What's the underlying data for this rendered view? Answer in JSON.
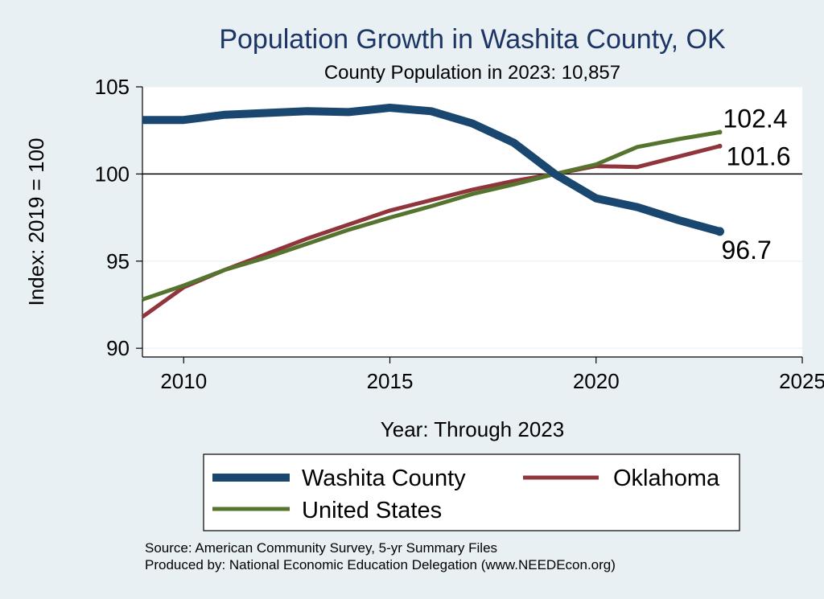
{
  "chart_data": {
    "type": "line",
    "title": "Population Growth in Washita County, OK",
    "subtitle": "County Population in 2023: 10,857",
    "xlabel": "Year: Through 2023",
    "ylabel": "Index: 2019 = 100",
    "xlim": [
      2009,
      2025
    ],
    "ylim": [
      89.5,
      105
    ],
    "x_ticks": [
      2010,
      2015,
      2020,
      2025
    ],
    "y_ticks": [
      90,
      95,
      100,
      105
    ],
    "reference_line": 100,
    "x": [
      2009,
      2010,
      2011,
      2012,
      2013,
      2014,
      2015,
      2016,
      2017,
      2018,
      2019,
      2020,
      2021,
      2022,
      2023
    ],
    "series": [
      {
        "name": "Washita  County",
        "color": "#1a476f",
        "values": [
          103.1,
          103.1,
          103.4,
          103.5,
          103.6,
          103.55,
          103.8,
          103.6,
          102.9,
          101.8,
          100.0,
          98.6,
          98.1,
          97.35,
          96.7
        ],
        "end_label": "96.7"
      },
      {
        "name": "Oklahoma",
        "color": "#90353b",
        "values": [
          91.8,
          93.5,
          94.5,
          95.4,
          96.3,
          97.1,
          97.9,
          98.5,
          99.1,
          99.6,
          100.0,
          100.45,
          100.4,
          101.0,
          101.6
        ],
        "end_label": "101.6"
      },
      {
        "name": "United States",
        "color": "#55752f",
        "values": [
          92.8,
          93.6,
          94.5,
          95.2,
          96.0,
          96.8,
          97.5,
          98.15,
          98.85,
          99.4,
          100.0,
          100.55,
          101.55,
          102.0,
          102.4
        ],
        "end_label": "102.4"
      }
    ],
    "legend": [
      "Washita  County",
      "Oklahoma",
      "United States"
    ],
    "source_lines": [
      "Source: American Community Survey, 5-yr Summary Files",
      "Produced by: National Economic Education Delegation (www.NEEDEcon.org)"
    ]
  }
}
